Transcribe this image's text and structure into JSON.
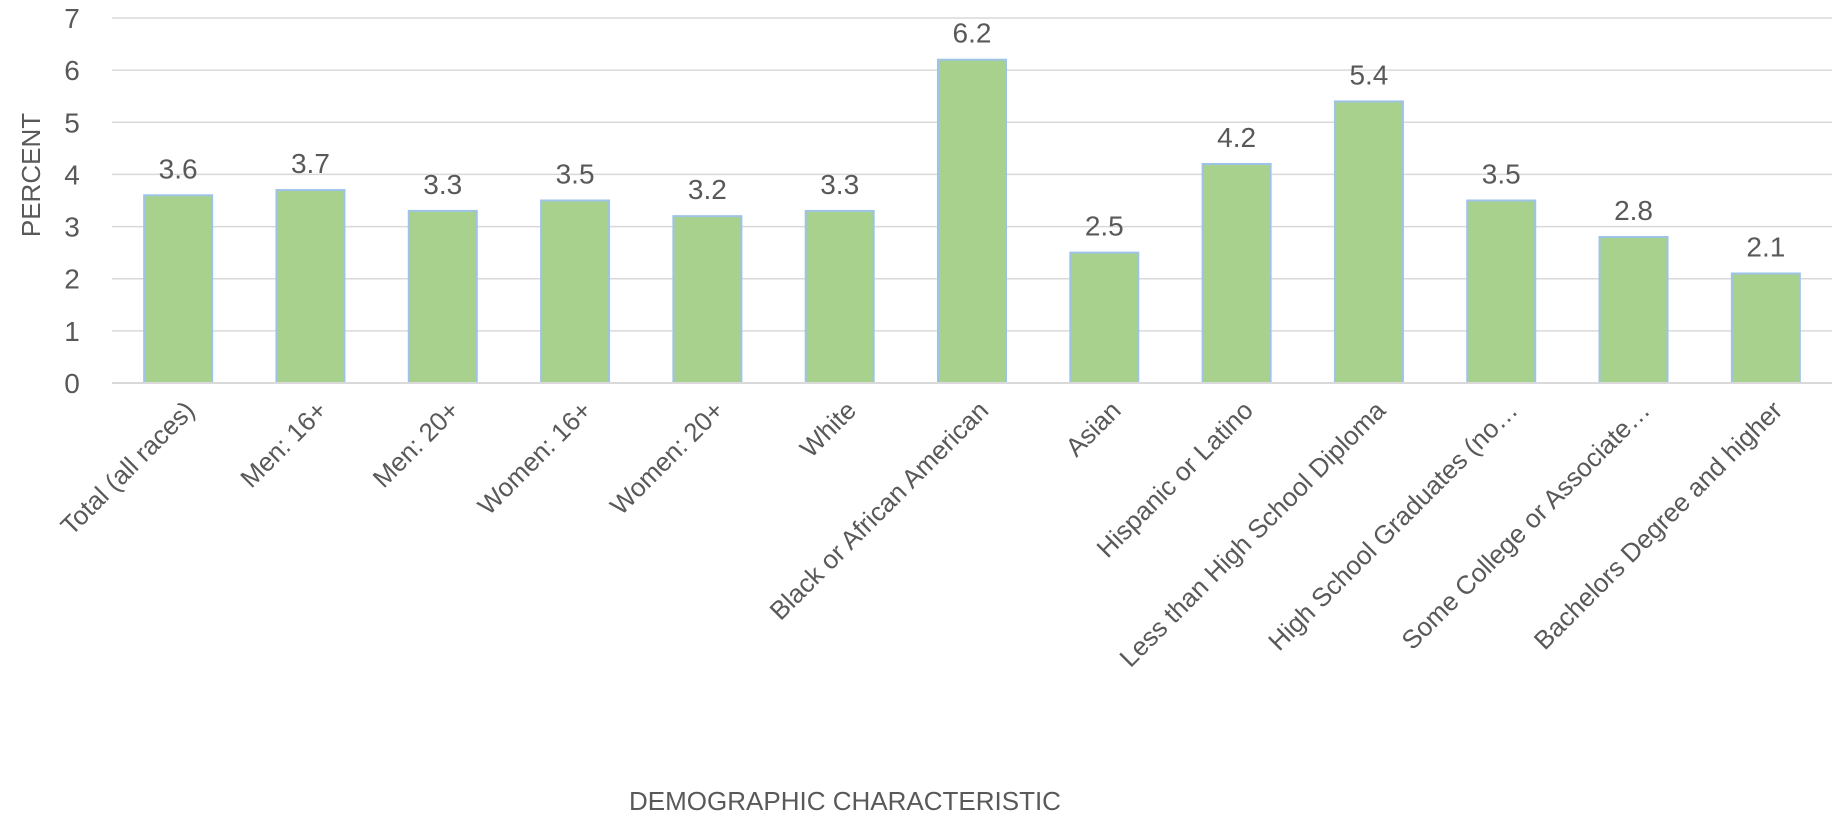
{
  "chart_data": {
    "type": "bar",
    "title": "",
    "xlabel": "DEMOGRAPHIC CHARACTERISTIC",
    "ylabel": "PERCENT",
    "ylim": [
      0,
      7
    ],
    "yticks": [
      0,
      1,
      2,
      3,
      4,
      5,
      6,
      7
    ],
    "grid": true,
    "legend": "none",
    "categories": [
      "Total (all races)",
      "Men: 16+",
      "Men: 20+",
      "Women: 16+",
      "Women: 20+",
      "White",
      "Black or African American",
      "Asian",
      "Hispanic or Latino",
      "Less than High School Diploma",
      "High School Graduates (no…",
      "Some College or Associate…",
      "Bachelors Degree and higher"
    ],
    "values": [
      3.6,
      3.7,
      3.3,
      3.5,
      3.2,
      3.3,
      6.2,
      2.5,
      4.2,
      5.4,
      3.5,
      2.8,
      2.1
    ],
    "colors": {
      "bar_fill": "#a9d18e",
      "bar_stroke": "#9dc3e6",
      "grid": "#d9d9d9",
      "text": "#595959"
    }
  }
}
